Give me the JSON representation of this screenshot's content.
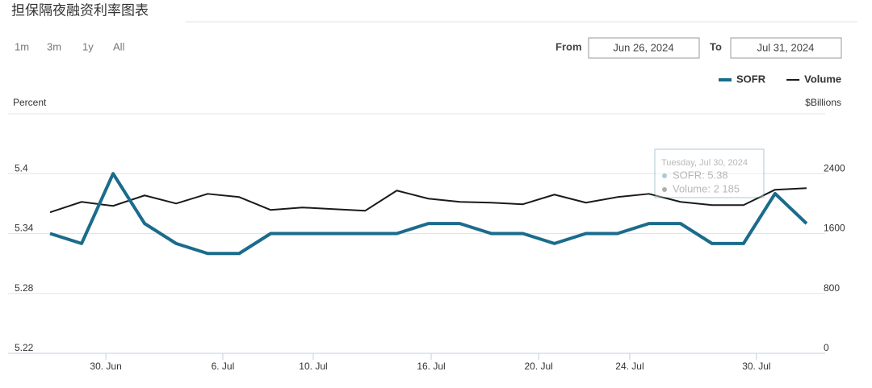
{
  "page_title": "担保隔夜融资利率图表",
  "range_buttons": [
    "1m",
    "3m",
    "1y",
    "All"
  ],
  "date_range": {
    "from_label": "From",
    "from": "Jun 26, 2024",
    "to_label": "To",
    "to": "Jul 31, 2024"
  },
  "chart_data": {
    "type": "line",
    "ylabel": "Percent",
    "y2label": "$Billions",
    "categories": [
      null,
      null,
      null,
      null,
      null,
      null,
      null,
      null,
      null,
      null,
      null,
      null,
      null,
      null,
      null,
      null,
      null,
      null,
      null,
      null,
      null,
      null,
      null,
      null,
      null
    ],
    "xticks": [
      {
        "value": 1.77,
        "label": "30. Jun"
      },
      {
        "value": 5.48,
        "label": "6. Jul"
      },
      {
        "value": 8.35,
        "label": "10. Jul"
      },
      {
        "value": 12.09,
        "label": "16. Jul"
      },
      {
        "value": 15.5,
        "label": "20. Jul"
      },
      {
        "value": 18.39,
        "label": "24. Jul"
      },
      {
        "value": 22.41,
        "label": "30. Jul"
      }
    ],
    "ylim": [
      5.22,
      5.46
    ],
    "yticks": [
      5.22,
      5.28,
      5.34,
      5.4
    ],
    "y2lim": [
      0,
      3200
    ],
    "y2ticks": [
      0,
      800,
      1600,
      2400
    ],
    "grid": true,
    "legend": "top-right",
    "series": [
      {
        "name": "SOFR",
        "color": "#1b6b8c",
        "values": [
          5.34,
          5.33,
          5.4,
          5.35,
          5.33,
          5.32,
          5.32,
          5.34,
          5.34,
          5.34,
          5.34,
          5.34,
          5.35,
          5.35,
          5.34,
          5.34,
          5.33,
          5.34,
          5.34,
          5.35,
          5.35,
          5.33,
          5.33,
          5.38,
          5.35
        ]
      },
      {
        "name": "Volume",
        "color": "#1a1a1a",
        "axis": "y2",
        "values": [
          1883,
          2023,
          1969,
          2109,
          2001,
          2130,
          2087,
          1915,
          1948,
          1926,
          1905,
          2174,
          2066,
          2023,
          2012,
          1991,
          2120,
          2012,
          2087,
          2130,
          2023,
          1980,
          1980,
          2185,
          2206
        ]
      }
    ],
    "tooltip": {
      "title": "Tuesday, Jul 30, 2024",
      "lines": [
        "SOFR: 5.38",
        "Volume: 2 185"
      ]
    }
  }
}
